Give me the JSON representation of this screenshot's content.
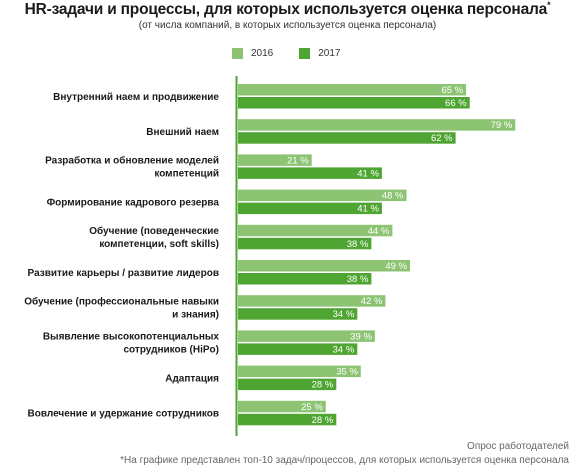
{
  "header": {
    "title": "HR-задачи и процессы, для которых используется оценка персонала",
    "title_mark": "*",
    "subtitle": "(от числа компаний, в которых используется оценка персонала)"
  },
  "footer": {
    "source": "Опрос работодателей",
    "footnote": "*На графике представлен топ-10 задач/процессов, для которых используется оценка персонала"
  },
  "chart_data": {
    "type": "bar",
    "orientation": "horizontal",
    "unit": "%",
    "value_suffix": " %",
    "xlim": [
      0,
      100
    ],
    "grid": false,
    "legend_position": "top",
    "categories": [
      [
        "Внутренний наем и продвижение"
      ],
      [
        "Внешний наем"
      ],
      [
        "Разработка и обновление моделей",
        "компетенций"
      ],
      [
        "Формирование кадрового резерва"
      ],
      [
        "Обучение (поведенческие",
        "компетенции, soft skills)"
      ],
      [
        "Развитие карьеры / развитие лидеров"
      ],
      [
        "Обучение (профессиональные навыки",
        "и знания)"
      ],
      [
        "Выявление высокопотенциальных",
        "сотрудников (HiPo)"
      ],
      [
        "Адаптация"
      ],
      [
        "Вовлечение и удержание сотрудников"
      ]
    ],
    "series": [
      {
        "name": "2016",
        "color": "#8cc474",
        "values": [
          65,
          79,
          21,
          48,
          44,
          49,
          42,
          39,
          35,
          25
        ]
      },
      {
        "name": "2017",
        "color": "#4ea532",
        "values": [
          66,
          62,
          41,
          41,
          38,
          38,
          34,
          34,
          28,
          28
        ]
      }
    ],
    "axis_color": "#4ea532"
  }
}
